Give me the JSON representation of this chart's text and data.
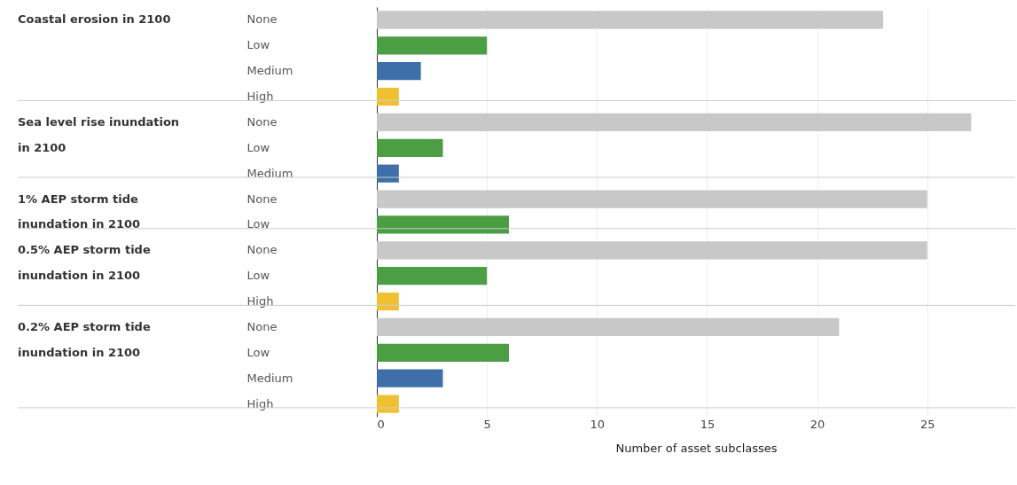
{
  "chart_data": {
    "type": "bar",
    "orientation": "horizontal",
    "categories": [
      "None",
      "Low",
      "Medium",
      "High",
      "None",
      "Low",
      "Medium",
      "None",
      "Low",
      "None",
      "Low",
      "High",
      "None",
      "Low",
      "Medium",
      "High"
    ],
    "values": [
      23,
      5,
      2,
      1,
      27,
      3,
      1,
      25,
      6,
      25,
      5,
      1,
      21,
      6,
      3,
      1
    ],
    "colors": [
      "#c8c8c8",
      "#4c9e45",
      "#3f6fa8",
      "#efc132",
      "#c8c8c8",
      "#4c9e45",
      "#3f6fa8",
      "#c8c8c8",
      "#4c9e45",
      "#c8c8c8",
      "#4c9e45",
      "#efc132",
      "#c8c8c8",
      "#4c9e45",
      "#3f6fa8",
      "#efc132"
    ],
    "annotations": [
      "Coastal erosion in 2100",
      "Sea level rise inundation in 2100",
      "1% AEP storm tide inundation in 2100",
      "0.5% AEP storm tide inundation in 2100",
      "0.2% AEP storm tide inundation in 2100"
    ],
    "xlabel": "Number of asset subclasses",
    "xlim": [
      0,
      29
    ],
    "xticks": [
      0,
      5,
      10,
      15,
      20,
      25
    ],
    "grid": "x"
  }
}
